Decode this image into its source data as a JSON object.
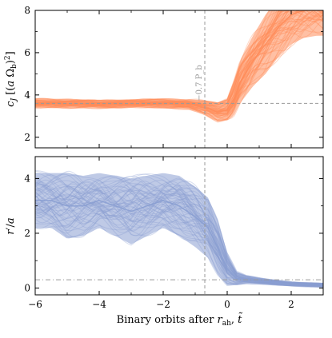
{
  "chart_data": [
    {
      "type": "line",
      "panel": "top",
      "ylabel": "c_J [(a Ω_b)^2]",
      "xlim": [
        -6,
        3
      ],
      "ylim": [
        1.5,
        8
      ],
      "yticks": [
        2,
        4,
        6,
        8
      ],
      "xticks": [
        -6,
        -4,
        -2,
        0,
        2
      ],
      "x_ticklabels_shown": false,
      "color": "#ff8c5a",
      "series": [
        {
          "x": [
            -6.0,
            -5.0,
            -4.0,
            -3.0,
            -2.0,
            -1.2,
            -0.7,
            -0.3,
            0.0,
            0.2,
            0.4,
            0.8,
            1.2,
            1.6,
            2.0,
            2.4,
            2.8,
            3.0
          ],
          "y": [
            3.6,
            3.6,
            3.55,
            3.6,
            3.6,
            3.55,
            3.4,
            3.2,
            3.3,
            3.8,
            4.6,
            5.6,
            6.4,
            7.2,
            7.8,
            8.0,
            8.0,
            8.0
          ],
          "spread": [
            0.22,
            0.22,
            0.2,
            0.2,
            0.22,
            0.25,
            0.35,
            0.45,
            0.5,
            0.8,
            1.0,
            1.2,
            1.4,
            1.4,
            1.4,
            1.3,
            1.2,
            1.2
          ]
        }
      ],
      "hline": {
        "y": 3.6,
        "style": "dashed"
      },
      "vline": {
        "x": -0.7,
        "style": "dashed",
        "label": "−0.7 P_b"
      }
    },
    {
      "type": "line",
      "panel": "bottom",
      "ylabel": "r′/a",
      "xlabel": "Binary orbits after r_ah, t̃",
      "xlim": [
        -6,
        3
      ],
      "ylim": [
        -0.25,
        4.8
      ],
      "yticks": [
        0,
        2,
        4
      ],
      "xticks": [
        -6,
        -4,
        -2,
        0,
        2
      ],
      "xticklabels": [
        "−6",
        "−4",
        "−2",
        "0",
        "2"
      ],
      "color": "#8a9fd1",
      "series": [
        {
          "x": [
            -6.0,
            -5.5,
            -5.0,
            -4.5,
            -4.0,
            -3.5,
            -3.0,
            -2.5,
            -2.0,
            -1.5,
            -1.0,
            -0.6,
            -0.3,
            0.0,
            0.3,
            0.6,
            1.0,
            1.5,
            2.0,
            2.5,
            3.0
          ],
          "y": [
            3.2,
            3.2,
            3.0,
            3.0,
            3.2,
            3.0,
            2.8,
            3.0,
            3.2,
            3.0,
            2.6,
            2.2,
            1.5,
            0.7,
            0.35,
            0.3,
            0.25,
            0.2,
            0.15,
            0.12,
            0.1
          ],
          "spread": [
            1.0,
            1.0,
            1.2,
            1.1,
            1.0,
            1.1,
            1.2,
            1.1,
            1.0,
            1.1,
            1.1,
            1.1,
            1.0,
            0.6,
            0.25,
            0.15,
            0.12,
            0.1,
            0.08,
            0.08,
            0.08
          ]
        }
      ],
      "hline": {
        "y": 0.3,
        "style": "dashdot"
      },
      "vline": {
        "x": -0.7,
        "style": "dashed"
      }
    }
  ]
}
